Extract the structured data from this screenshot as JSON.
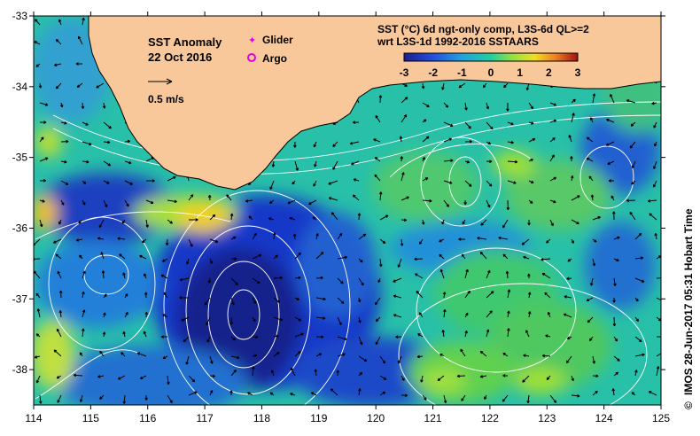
{
  "anomaly_title": "SST Anomaly",
  "date_label": "22 Oct 2016",
  "vector_scale_label": "0.5 m/s",
  "legend": {
    "glider_label": "Glider",
    "argo_label": "Argo",
    "glider_color": "#e000e0",
    "argo_color": "#e000e0"
  },
  "product_line1": "SST (°C) 6d ngt-only comp, L3S-6d QL>=2",
  "product_line2": "wrt L3S-1d 1992-2016 SSTAARS",
  "side_caption": "IMOS 28-Jun-2017 05:31 Hobart Time",
  "copyright_symbol": "©",
  "colorbar": {
    "min": -3,
    "max": 3,
    "ticks": [
      "-3",
      "-2",
      "-1",
      "0",
      "1",
      "2",
      "3"
    ]
  },
  "colors": {
    "land": "#f8c89a",
    "ocean_base": "#20c0a0"
  },
  "chart_data": {
    "type": "heatmap",
    "x_ticks": [
      "114",
      "115",
      "116",
      "117",
      "118",
      "119",
      "120",
      "121",
      "122",
      "123",
      "124",
      "125"
    ],
    "y_ticks": [
      "-33",
      "-34",
      "-35",
      "-36",
      "-37",
      "-38"
    ],
    "xlim": [
      114,
      125
    ],
    "ylim": [
      -38.5,
      -33
    ],
    "color_scale": [
      -3,
      3
    ]
  }
}
